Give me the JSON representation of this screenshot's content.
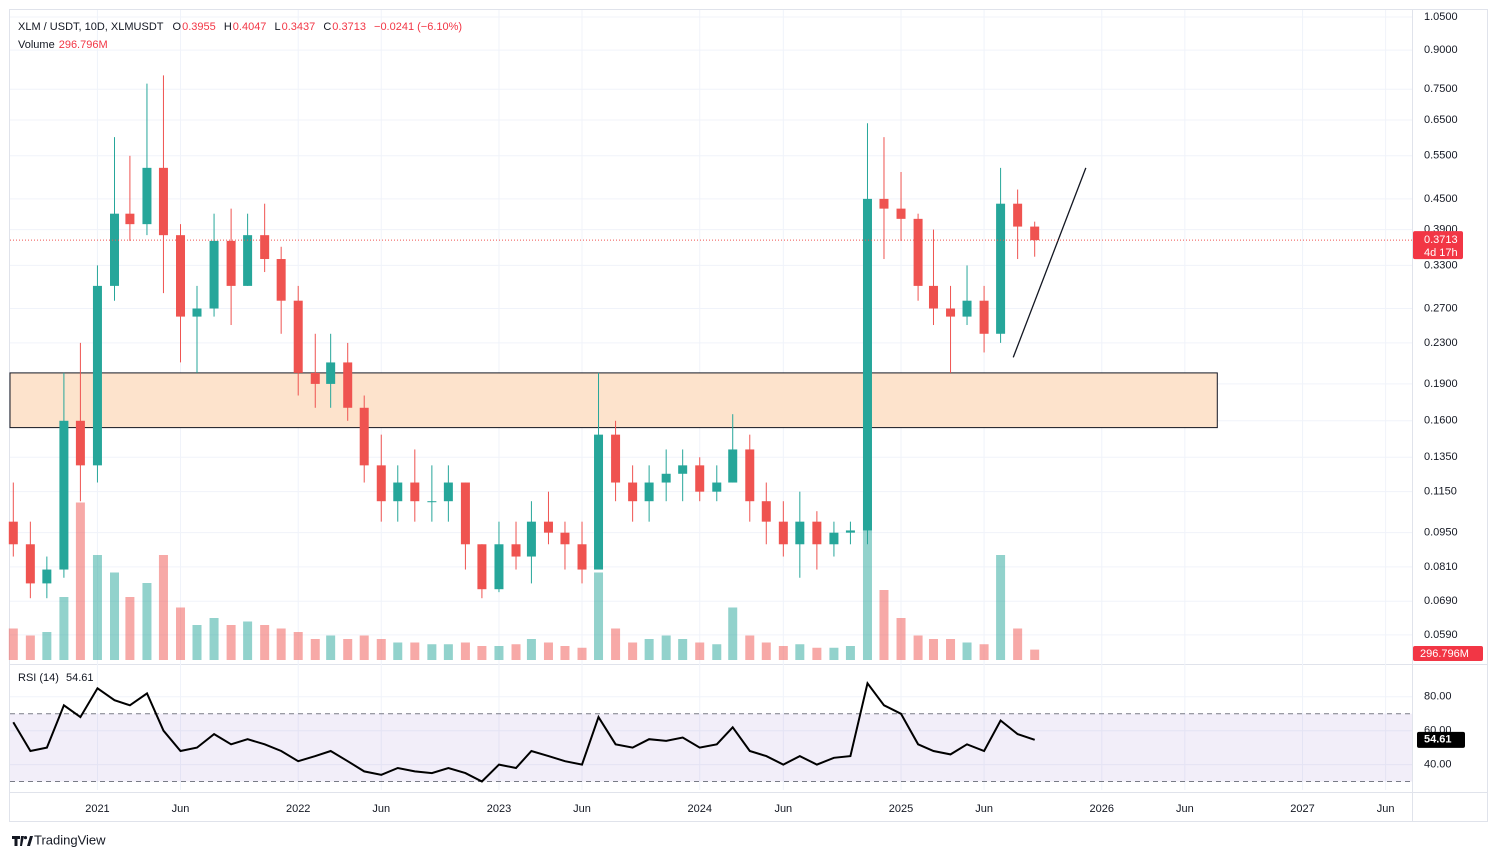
{
  "chart_data": {
    "type": "candlestick",
    "title": "XLM / USDT, 10D, XLMUSDT",
    "ohlc_letters": [
      "O",
      "H",
      "L",
      "C"
    ],
    "change_label": "−0.0241 (−6.10%)",
    "volume_name": "Volume",
    "countdown": "4d 17h",
    "brand": "TradingView",
    "log_scale": true,
    "grid": true,
    "up_color": "#26a69a",
    "down_color": "#ef5350",
    "x": [
      "2020-08-01",
      "2020-09-01",
      "2020-10-01",
      "2020-11-01",
      "2020-12-01",
      "2021-01-01",
      "2021-02-01",
      "2021-03-01",
      "2021-04-01",
      "2021-05-01",
      "2021-06-01",
      "2021-07-01",
      "2021-08-01",
      "2021-09-01",
      "2021-10-01",
      "2021-11-01",
      "2021-12-01",
      "2022-01-01",
      "2022-02-01",
      "2022-03-01",
      "2022-04-01",
      "2022-05-01",
      "2022-06-01",
      "2022-07-01",
      "2022-08-01",
      "2022-09-01",
      "2022-10-01",
      "2022-11-01",
      "2022-12-01",
      "2023-01-01",
      "2023-02-01",
      "2023-03-01",
      "2023-04-01",
      "2023-05-01",
      "2023-06-01",
      "2023-07-01",
      "2023-08-01",
      "2023-09-01",
      "2023-10-01",
      "2023-11-01",
      "2023-12-01",
      "2024-01-01",
      "2024-02-01",
      "2024-03-01",
      "2024-04-01",
      "2024-05-01",
      "2024-06-01",
      "2024-07-01",
      "2024-08-01",
      "2024-09-01",
      "2024-10-01",
      "2024-11-01",
      "2024-12-01",
      "2025-01-01",
      "2025-02-01",
      "2025-03-01",
      "2025-04-01",
      "2025-05-01",
      "2025-06-01",
      "2025-07-01",
      "2025-08-01",
      "2025-09-01"
    ],
    "open": [
      0.1,
      0.09,
      0.075,
      0.08,
      0.16,
      0.13,
      0.3,
      0.42,
      0.4,
      0.52,
      0.38,
      0.26,
      0.27,
      0.37,
      0.3,
      0.38,
      0.34,
      0.28,
      0.2,
      0.19,
      0.21,
      0.17,
      0.13,
      0.11,
      0.12,
      0.11,
      0.11,
      0.12,
      0.09,
      0.073,
      0.09,
      0.085,
      0.1,
      0.095,
      0.09,
      0.08,
      0.15,
      0.12,
      0.11,
      0.12,
      0.125,
      0.13,
      0.115,
      0.12,
      0.14,
      0.11,
      0.1,
      0.09,
      0.1,
      0.09,
      0.095,
      0.096,
      0.45,
      0.43,
      0.41,
      0.3,
      0.27,
      0.26,
      0.28,
      0.24,
      0.44,
      0.3955
    ],
    "high": [
      0.12,
      0.1,
      0.085,
      0.2,
      0.23,
      0.33,
      0.6,
      0.55,
      0.77,
      0.8,
      0.4,
      0.3,
      0.42,
      0.43,
      0.42,
      0.44,
      0.36,
      0.3,
      0.24,
      0.24,
      0.23,
      0.18,
      0.15,
      0.13,
      0.14,
      0.13,
      0.13,
      0.12,
      0.09,
      0.1,
      0.1,
      0.11,
      0.115,
      0.1,
      0.1,
      0.2,
      0.16,
      0.13,
      0.13,
      0.14,
      0.14,
      0.135,
      0.13,
      0.165,
      0.15,
      0.12,
      0.11,
      0.115,
      0.105,
      0.1,
      0.1,
      0.64,
      0.6,
      0.51,
      0.42,
      0.39,
      0.3,
      0.33,
      0.3,
      0.52,
      0.47,
      0.4047
    ],
    "low": [
      0.085,
      0.07,
      0.07,
      0.077,
      0.11,
      0.12,
      0.28,
      0.37,
      0.38,
      0.29,
      0.21,
      0.2,
      0.26,
      0.25,
      0.3,
      0.32,
      0.24,
      0.18,
      0.17,
      0.17,
      0.16,
      0.12,
      0.1,
      0.1,
      0.1,
      0.1,
      0.1,
      0.08,
      0.07,
      0.072,
      0.08,
      0.075,
      0.09,
      0.08,
      0.075,
      0.08,
      0.11,
      0.1,
      0.1,
      0.11,
      0.11,
      0.11,
      0.11,
      0.12,
      0.1,
      0.09,
      0.085,
      0.077,
      0.08,
      0.085,
      0.09,
      0.09,
      0.34,
      0.37,
      0.28,
      0.25,
      0.2,
      0.25,
      0.22,
      0.23,
      0.34,
      0.3437
    ],
    "close": [
      0.09,
      0.075,
      0.08,
      0.16,
      0.13,
      0.3,
      0.42,
      0.4,
      0.52,
      0.38,
      0.26,
      0.27,
      0.37,
      0.3,
      0.38,
      0.34,
      0.28,
      0.2,
      0.19,
      0.21,
      0.17,
      0.13,
      0.11,
      0.12,
      0.11,
      0.11,
      0.12,
      0.09,
      0.073,
      0.09,
      0.085,
      0.1,
      0.095,
      0.09,
      0.08,
      0.15,
      0.12,
      0.11,
      0.12,
      0.125,
      0.13,
      0.115,
      0.12,
      0.14,
      0.11,
      0.1,
      0.09,
      0.1,
      0.09,
      0.095,
      0.096,
      0.45,
      0.43,
      0.41,
      0.3,
      0.27,
      0.26,
      0.28,
      0.24,
      0.44,
      0.3955,
      0.3713
    ],
    "volume": [
      900,
      700,
      800,
      1800,
      4500,
      3000,
      2500,
      1800,
      2200,
      3000,
      1500,
      1000,
      1200,
      1000,
      1100,
      1000,
      900,
      800,
      600,
      700,
      600,
      700,
      600,
      500,
      500,
      450,
      450,
      500,
      400,
      400,
      450,
      600,
      500,
      400,
      350,
      2500,
      900,
      500,
      600,
      700,
      600,
      500,
      450,
      1500,
      700,
      500,
      400,
      450,
      350,
      350,
      400,
      4800,
      2000,
      1200,
      700,
      600,
      600,
      500,
      450,
      3000,
      900,
      296.796
    ],
    "volume_value_label": "296.796M",
    "vlim": [
      0,
      5000
    ],
    "xlim": [
      "2020-07-26",
      "2027-07-19"
    ],
    "xticks": [
      {
        "value": "2021-01-01",
        "label": "2021"
      },
      {
        "value": "2021-06-01",
        "label": "Jun"
      },
      {
        "value": "2022-01-01",
        "label": "2022"
      },
      {
        "value": "2022-06-01",
        "label": "Jun"
      },
      {
        "value": "2023-01-01",
        "label": "2023"
      },
      {
        "value": "2023-06-01",
        "label": "Jun"
      },
      {
        "value": "2024-01-01",
        "label": "2024"
      },
      {
        "value": "2024-06-01",
        "label": "Jun"
      },
      {
        "value": "2025-01-01",
        "label": "2025"
      },
      {
        "value": "2025-06-01",
        "label": "Jun"
      },
      {
        "value": "2026-01-01",
        "label": "2026"
      },
      {
        "value": "2026-06-01",
        "label": "Jun"
      },
      {
        "value": "2027-01-01",
        "label": "2027"
      },
      {
        "value": "2027-06-01",
        "label": "Jun"
      }
    ],
    "ylim": [
      0.052,
      1.085
    ],
    "yticks": [
      {
        "value": 1.05,
        "label": "1.0500"
      },
      {
        "value": 0.9,
        "label": "0.9000"
      },
      {
        "value": 0.75,
        "label": "0.7500"
      },
      {
        "value": 0.65,
        "label": "0.6500"
      },
      {
        "value": 0.55,
        "label": "0.5500"
      },
      {
        "value": 0.45,
        "label": "0.4500"
      },
      {
        "value": 0.39,
        "label": "0.3900"
      },
      {
        "value": 0.33,
        "label": "0.3300"
      },
      {
        "value": 0.27,
        "label": "0.2700"
      },
      {
        "value": 0.23,
        "label": "0.2300"
      },
      {
        "value": 0.19,
        "label": "0.1900"
      },
      {
        "value": 0.16,
        "label": "0.1600"
      },
      {
        "value": 0.135,
        "label": "0.1350"
      },
      {
        "value": 0.115,
        "label": "0.1150"
      },
      {
        "value": 0.095,
        "label": "0.0950"
      },
      {
        "value": 0.081,
        "label": "0.0810"
      },
      {
        "value": 0.069,
        "label": "0.0690"
      },
      {
        "value": 0.059,
        "label": "0.0590"
      }
    ],
    "zone": {
      "x": [
        "2020-07-26",
        "2026-07-30"
      ],
      "y": [
        0.155,
        0.2
      ],
      "color": "#fde3cc"
    },
    "trendline": {
      "x": [
        "2025-07-24",
        "2025-12-03"
      ],
      "y": [
        0.215,
        0.52
      ]
    },
    "rsi": {
      "name": "RSI (14)",
      "color": "#000000",
      "values": [
        65,
        48,
        50,
        75,
        68,
        85,
        78,
        75,
        82,
        60,
        48,
        50,
        58,
        52,
        55,
        52,
        48,
        42,
        45,
        48,
        42,
        36,
        34,
        38,
        36,
        35,
        38,
        35,
        30,
        40,
        38,
        48,
        45,
        42,
        40,
        68,
        52,
        50,
        55,
        54,
        56,
        50,
        52,
        62,
        48,
        45,
        40,
        45,
        40,
        44,
        45,
        88,
        75,
        70,
        52,
        48,
        46,
        52,
        48,
        66,
        58,
        54.61
      ],
      "ylim": [
        25,
        97
      ],
      "yticks": [
        {
          "value": 80,
          "label": "80.00"
        },
        {
          "value": 60,
          "label": "60.00"
        },
        {
          "value": 40,
          "label": "40.00"
        }
      ],
      "bands": [
        30,
        70
      ]
    }
  }
}
